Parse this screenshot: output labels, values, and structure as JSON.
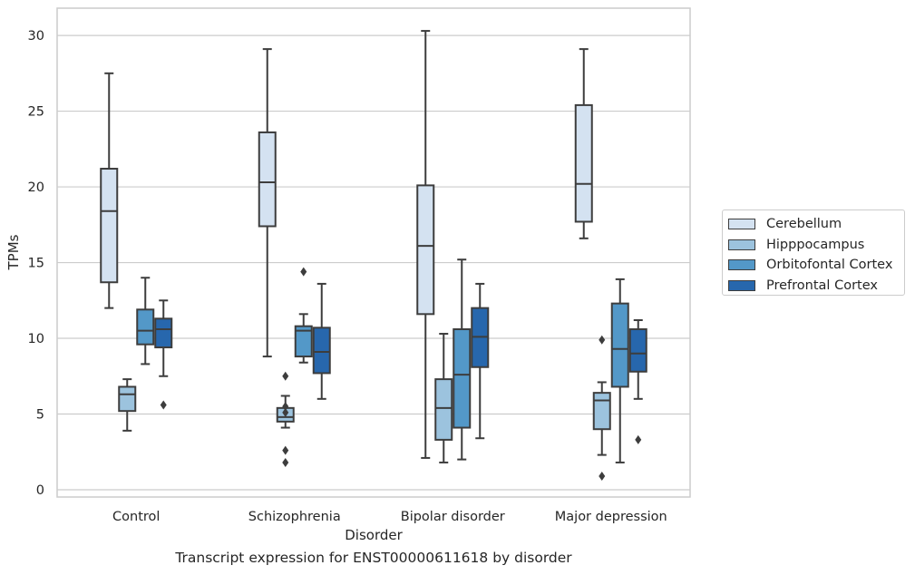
{
  "caption": "Transcript expression for ENST00000611618 by disorder",
  "chart_data": {
    "type": "box",
    "xlabel": "Disorder",
    "ylabel": "TPMs",
    "ylim": [
      -0.5,
      31.8
    ],
    "yticks": [
      0,
      5,
      10,
      15,
      20,
      25,
      30
    ],
    "grid": "horizontal",
    "legend_position": "right",
    "categories": [
      "Control",
      "Schizophrenia",
      "Bipolar disorder",
      "Major depression"
    ],
    "series": [
      {
        "name": "Cerebellum",
        "color": "#d4e2f1",
        "boxes": [
          {
            "whisker_low": 12.0,
            "q1": 13.7,
            "median": 18.4,
            "q3": 21.2,
            "whisker_high": 27.5,
            "outliers": []
          },
          {
            "whisker_low": 8.8,
            "q1": 17.4,
            "median": 20.3,
            "q3": 23.6,
            "whisker_high": 29.1,
            "outliers": []
          },
          {
            "whisker_low": 2.1,
            "q1": 11.6,
            "median": 16.1,
            "q3": 20.1,
            "whisker_high": 30.3,
            "outliers": []
          },
          {
            "whisker_low": 16.6,
            "q1": 17.7,
            "median": 20.2,
            "q3": 25.4,
            "whisker_high": 29.1,
            "outliers": []
          }
        ]
      },
      {
        "name": "Hipppocampus",
        "color": "#9cc3de",
        "boxes": [
          {
            "whisker_low": 3.9,
            "q1": 5.2,
            "median": 6.3,
            "q3": 6.8,
            "whisker_high": 7.3,
            "outliers": []
          },
          {
            "whisker_low": 4.1,
            "q1": 4.5,
            "median": 4.8,
            "q3": 5.4,
            "whisker_high": 6.2,
            "outliers": [
              7.5,
              5.5,
              5.1,
              2.6,
              1.8
            ]
          },
          {
            "whisker_low": 1.8,
            "q1": 3.3,
            "median": 5.4,
            "q3": 7.3,
            "whisker_high": 10.3,
            "outliers": []
          },
          {
            "whisker_low": 2.3,
            "q1": 4.0,
            "median": 5.9,
            "q3": 6.4,
            "whisker_high": 7.1,
            "outliers": [
              9.9,
              0.9
            ]
          }
        ]
      },
      {
        "name": "Orbitofontal Cortex",
        "color": "#5398c8",
        "boxes": [
          {
            "whisker_low": 8.3,
            "q1": 9.6,
            "median": 10.5,
            "q3": 11.9,
            "whisker_high": 14.0,
            "outliers": []
          },
          {
            "whisker_low": 8.4,
            "q1": 8.8,
            "median": 10.5,
            "q3": 10.8,
            "whisker_high": 11.6,
            "outliers": [
              14.4
            ]
          },
          {
            "whisker_low": 2.0,
            "q1": 4.1,
            "median": 7.6,
            "q3": 10.6,
            "whisker_high": 15.2,
            "outliers": []
          },
          {
            "whisker_low": 1.8,
            "q1": 6.8,
            "median": 9.3,
            "q3": 12.3,
            "whisker_high": 13.9,
            "outliers": []
          }
        ]
      },
      {
        "name": "Prefrontal Cortex",
        "color": "#2767ad",
        "boxes": [
          {
            "whisker_low": 7.5,
            "q1": 9.4,
            "median": 10.6,
            "q3": 11.3,
            "whisker_high": 12.5,
            "outliers": [
              5.6
            ]
          },
          {
            "whisker_low": 6.0,
            "q1": 7.7,
            "median": 9.1,
            "q3": 10.7,
            "whisker_high": 13.6,
            "outliers": []
          },
          {
            "whisker_low": 3.4,
            "q1": 8.1,
            "median": 10.1,
            "q3": 12.0,
            "whisker_high": 13.6,
            "outliers": []
          },
          {
            "whisker_low": 6.0,
            "q1": 7.8,
            "median": 9.0,
            "q3": 10.6,
            "whisker_high": 11.2,
            "outliers": [
              3.3
            ]
          }
        ]
      }
    ]
  }
}
